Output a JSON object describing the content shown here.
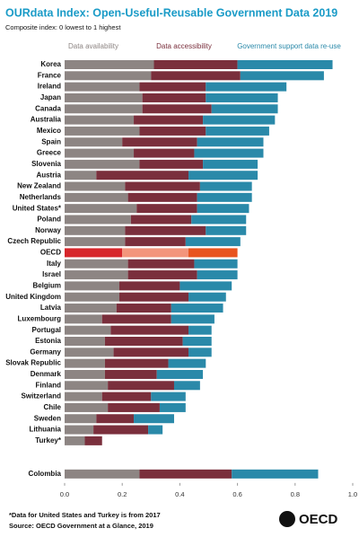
{
  "chart_data": {
    "type": "stacked-bar-horizontal",
    "title": "OURdata Index: Open-Useful-Reusable Government Data 2019",
    "subtitle": "Composite index: 0 lowest to 1 highest",
    "categories": [
      "Korea",
      "France",
      "Ireland",
      "Japan",
      "Canada",
      "Australia",
      "Mexico",
      "Spain",
      "Greece",
      "Slovenia",
      "Austria",
      "New Zealand",
      "Netherlands",
      "United States*",
      "Poland",
      "Norway",
      "Czech Republic",
      "OECD",
      "Italy",
      "Israel",
      "Belgium",
      "United Kingdom",
      "Latvia",
      "Luxembourg",
      "Portugal",
      "Estonia",
      "Germany",
      "Slovak Republic",
      "Denmark",
      "Finland",
      "Switzerland",
      "Chile",
      "Sweden",
      "Lithuania",
      "Turkey*",
      null,
      null,
      "Colombia"
    ],
    "series": [
      {
        "name": "Data availability",
        "color": "#8d8583",
        "highlight_color": "#d7262b",
        "values": [
          0.31,
          0.3,
          0.26,
          0.27,
          0.27,
          0.24,
          0.26,
          0.2,
          0.24,
          0.26,
          0.11,
          0.21,
          0.22,
          0.25,
          0.23,
          0.21,
          0.21,
          0.2,
          0.22,
          0.22,
          0.19,
          0.19,
          0.18,
          0.13,
          0.16,
          0.14,
          0.17,
          0.14,
          0.14,
          0.15,
          0.13,
          0.15,
          0.11,
          0.1,
          0.07,
          null,
          null,
          0.26
        ]
      },
      {
        "name": "Data accessibility",
        "color": "#7a2f3c",
        "highlight_color": "#f3957c",
        "values": [
          0.29,
          0.31,
          0.23,
          0.22,
          0.24,
          0.24,
          0.23,
          0.26,
          0.21,
          0.22,
          0.32,
          0.26,
          0.24,
          0.21,
          0.21,
          0.28,
          0.21,
          0.23,
          0.23,
          0.24,
          0.21,
          0.24,
          0.19,
          0.24,
          0.27,
          0.27,
          0.26,
          0.22,
          0.18,
          0.23,
          0.17,
          0.18,
          0.13,
          0.19,
          0.06,
          null,
          null,
          0.32
        ]
      },
      {
        "name": "Government support data re-use",
        "color": "#2a89a9",
        "highlight_color": "#e8541f",
        "values": [
          0.33,
          0.29,
          0.28,
          0.25,
          0.23,
          0.25,
          0.22,
          0.23,
          0.24,
          0.19,
          0.24,
          0.18,
          0.19,
          0.18,
          0.19,
          0.14,
          0.19,
          0.17,
          0.15,
          0.14,
          0.18,
          0.13,
          0.18,
          0.15,
          0.08,
          0.1,
          0.08,
          0.13,
          0.16,
          0.09,
          0.12,
          0.09,
          0.14,
          0.05,
          0,
          null,
          null,
          0.3
        ]
      }
    ],
    "highlight": "OECD",
    "xlim": [
      0,
      1
    ],
    "xticks": [
      {
        "value": 0,
        "label": "0.0"
      },
      0.2,
      0.4,
      0.6,
      0.8,
      {
        "value": 1,
        "label": "1.0"
      }
    ],
    "notes": [
      "*Data for United States and Turkey is from 2017",
      "Source: OECD Government at a Glance, 2019"
    ],
    "logo": "OECD"
  }
}
